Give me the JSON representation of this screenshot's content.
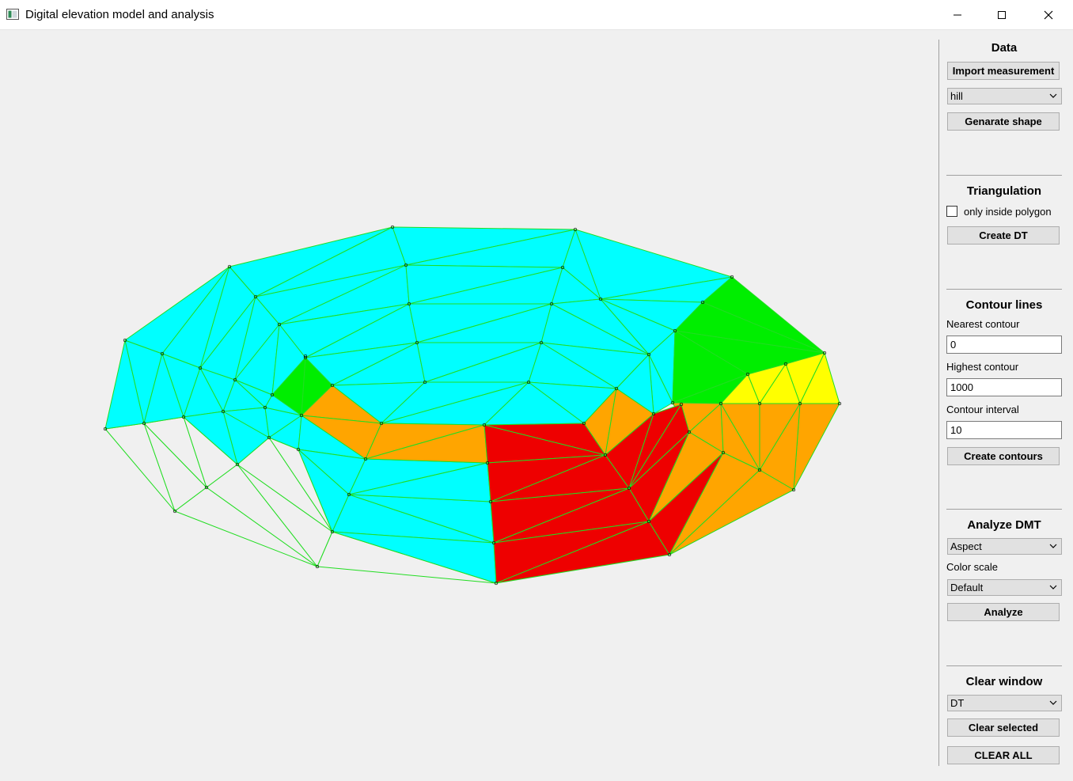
{
  "window": {
    "title": "Digital elevation model and analysis",
    "controls": [
      "minimize",
      "maximize",
      "close"
    ]
  },
  "panel": {
    "data": {
      "heading": "Data",
      "import_button": "Import measurement",
      "shape_select": "hill",
      "generate_button": "Genarate shape"
    },
    "triangulation": {
      "heading": "Triangulation",
      "only_inside_polygon_label": "only inside polygon",
      "only_inside_polygon_checked": false,
      "create_dt_button": "Create DT"
    },
    "contours": {
      "heading": "Contour lines",
      "nearest_label": "Nearest contour",
      "nearest_value": "0",
      "highest_label": "Highest contour",
      "highest_value": "1000",
      "interval_label": "Contour interval",
      "interval_value": "10",
      "create_button": "Create contours"
    },
    "analyze": {
      "heading": "Analyze DMT",
      "analysis_select": "Aspect",
      "color_scale_label": "Color scale",
      "color_scale_select": "Default",
      "analyze_button": "Analyze"
    },
    "clear": {
      "heading": "Clear window",
      "clear_select": "DT",
      "clear_selected_button": "Clear selected",
      "clear_all_button": "CLEAR ALL"
    }
  },
  "colors": {
    "cyan": "#00ffff",
    "green": "#00ee00",
    "yellow": "#ffff00",
    "orange": "#ffa500",
    "red": "#ee0000",
    "edge": "#22dd22"
  }
}
